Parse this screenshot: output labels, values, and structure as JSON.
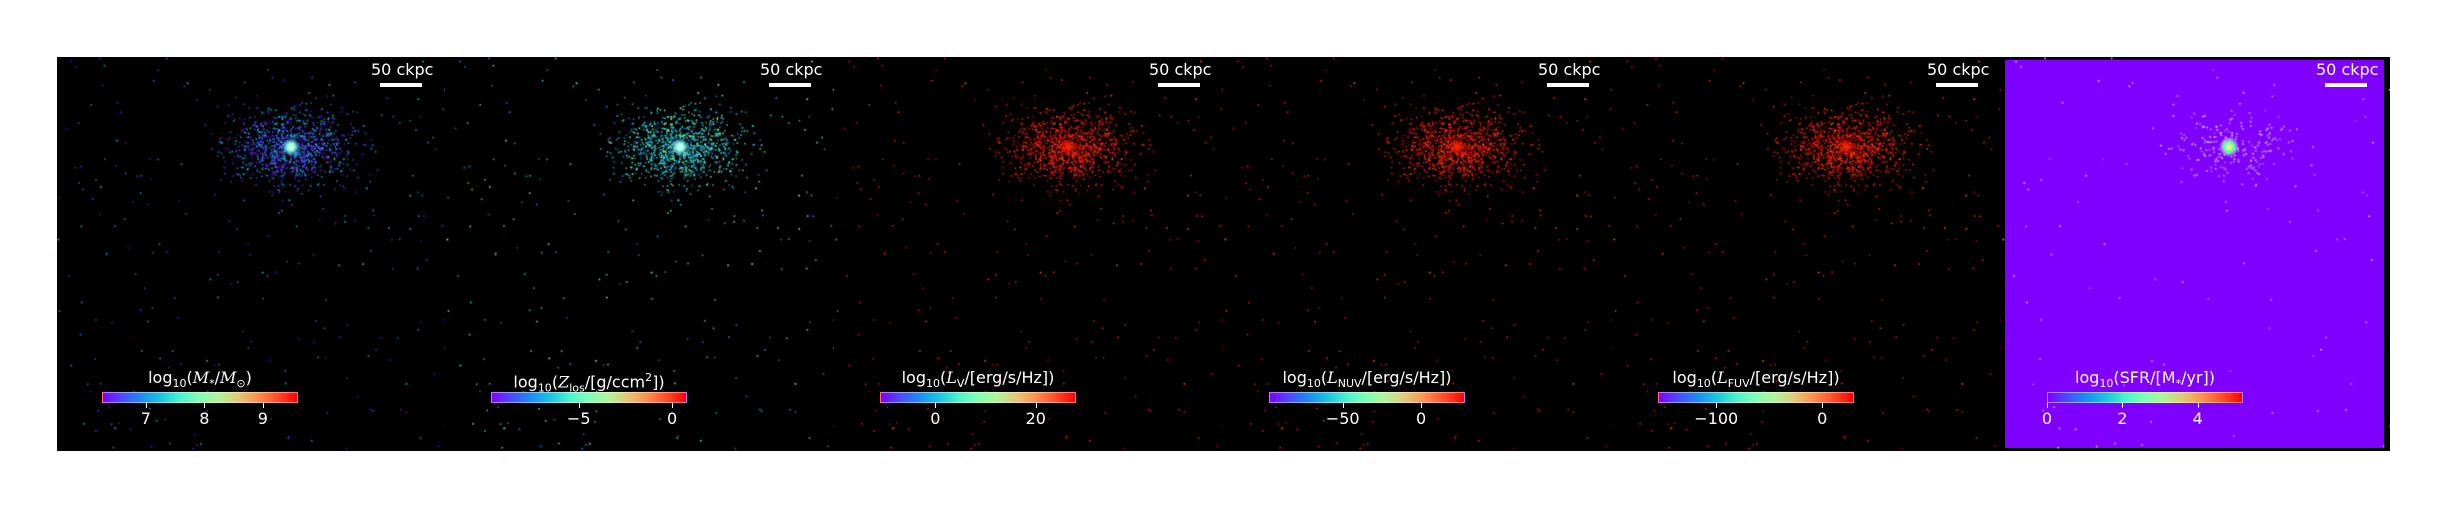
{
  "scalebar_label": "50 ckpc",
  "colormap": [
    "#8000ff",
    "#4a4dfb",
    "#1a8ef0",
    "#1ac6e0",
    "#4df3ce",
    "#80ffb4",
    "#b3f396",
    "#e6c674",
    "#ff8e4a",
    "#ff4d26",
    "#ff0000"
  ],
  "panels": [
    {
      "name": "stellar-mass",
      "title_parts": [
        "log",
        "10",
        "(",
        "M",
        "*",
        "/",
        "M",
        "⊙",
        ")"
      ],
      "title_plain": "log10(M*/M⊙)",
      "range": [
        6.25,
        9.6
      ],
      "ticks": [
        7,
        8,
        9
      ],
      "tick_labels": [
        "7",
        "8",
        "9"
      ],
      "background": "#000000",
      "particle_palette": "rainbow-low"
    },
    {
      "name": "metallicity",
      "title_plain": "log10(Zlos/[g/ccm²])",
      "range": [
        -9.7,
        0.8
      ],
      "ticks": [
        -5,
        0
      ],
      "tick_labels": [
        "−5",
        "0"
      ],
      "background": "#000000",
      "particle_palette": "rainbow-mid"
    },
    {
      "name": "luminosity-v",
      "title_plain": "log10(LV/[erg/s/Hz])",
      "range": [
        -11,
        28
      ],
      "ticks": [
        0,
        20
      ],
      "tick_labels": [
        "0",
        "20"
      ],
      "background": "#000000",
      "particle_palette": "red"
    },
    {
      "name": "luminosity-nuv",
      "title_plain": "log10(LNUV/[erg/s/Hz])",
      "range": [
        -97,
        28
      ],
      "ticks": [
        -50,
        0
      ],
      "tick_labels": [
        "−50",
        "0"
      ],
      "background": "#000000",
      "particle_palette": "red"
    },
    {
      "name": "luminosity-fuv",
      "title_plain": "log10(LFUV/[erg/s/Hz])",
      "range": [
        -155,
        30
      ],
      "ticks": [
        -100,
        0
      ],
      "tick_labels": [
        "−100",
        "0"
      ],
      "background": "#000000",
      "particle_palette": "red"
    },
    {
      "name": "sfr",
      "title_plain": "log10(SFR/[M*/yr])",
      "range": [
        0,
        5.2
      ],
      "ticks": [
        0,
        2,
        4
      ],
      "tick_labels": [
        "0",
        "2",
        "4"
      ],
      "background": "#8000ff",
      "particle_palette": "white"
    }
  ],
  "titles": {
    "p0": {
      "pre": "log",
      "sub": "10",
      "open": "(",
      "sym": "M",
      "symsub": "*",
      "mid": "/",
      "sym2": "M",
      "sym2sub": "⊙",
      "post": ")"
    },
    "p1": {
      "pre": "log",
      "sub": "10",
      "open": "(",
      "sym": "Z",
      "symsub": "los",
      "post": "/[g/ccm",
      "sup": "2",
      "post2": "])"
    },
    "p2": {
      "pre": "log",
      "sub": "10",
      "open": "(",
      "sym": "L",
      "symsub": "V",
      "post": "/[erg/s/Hz])"
    },
    "p3": {
      "pre": "log",
      "sub": "10",
      "open": "(",
      "sym": "L",
      "symsub": "NUV",
      "post": "/[erg/s/Hz])"
    },
    "p4": {
      "pre": "log",
      "sub": "10",
      "open": "(",
      "sym": "L",
      "symsub": "FUV",
      "post": "/[erg/s/Hz])"
    },
    "p5": {
      "pre": "log",
      "sub": "10",
      "open": "(SFR/[M",
      "symsub": "*",
      "post": "/yr])"
    }
  }
}
